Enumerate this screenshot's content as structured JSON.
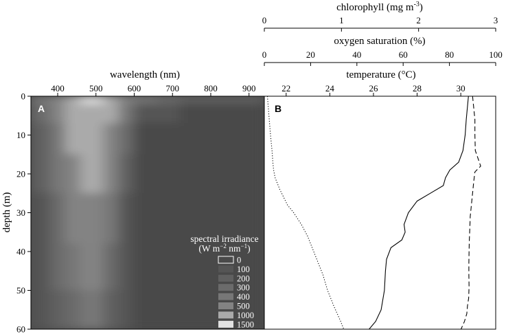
{
  "chart_data": [
    {
      "panel": "A",
      "type": "heatmap",
      "xlabel": "wavelength (nm)",
      "ylabel": "depth (m)",
      "xlim": [
        330,
        940
      ],
      "ylim": [
        0,
        60
      ],
      "xticks": [
        400,
        500,
        600,
        700,
        800,
        900
      ],
      "yticks": [
        0,
        10,
        20,
        30,
        40,
        50,
        60
      ],
      "legend": {
        "title_line1": "spectral irradiance",
        "title_line2_parts": [
          "(W m",
          "−2",
          " nm",
          "−1",
          ")"
        ],
        "position": "bottom-right",
        "levels": [
          {
            "label": "0",
            "color": "#4a4a4a"
          },
          {
            "label": "100",
            "color": "#555555"
          },
          {
            "label": "200",
            "color": "#606060"
          },
          {
            "label": "300",
            "color": "#6b6b6b"
          },
          {
            "label": "400",
            "color": "#777777"
          },
          {
            "label": "500",
            "color": "#838383"
          },
          {
            "label": "1000",
            "color": "#aaaaaa"
          },
          {
            "label": "1500",
            "color": "#e2e2e2"
          }
        ]
      },
      "band_columns": [
        {
          "wl": [
            330,
            380
          ],
          "levels": [
            4,
            3,
            2,
            2,
            1,
            1,
            1
          ]
        },
        {
          "wl": [
            380,
            420
          ],
          "levels": [
            5,
            5,
            4,
            4,
            3,
            3,
            2
          ]
        },
        {
          "wl": [
            420,
            460
          ],
          "levels": [
            6,
            6,
            6,
            5,
            5,
            4,
            3
          ]
        },
        {
          "wl": [
            460,
            520
          ],
          "levels": [
            7,
            6,
            6,
            6,
            5,
            5,
            4
          ]
        },
        {
          "wl": [
            520,
            560
          ],
          "levels": [
            6,
            6,
            5,
            5,
            4,
            3,
            2
          ]
        },
        {
          "wl": [
            560,
            600
          ],
          "levels": [
            5,
            4,
            3,
            2,
            1,
            1,
            1
          ]
        },
        {
          "wl": [
            600,
            660
          ],
          "levels": [
            4,
            1,
            0,
            0,
            0,
            0,
            0
          ]
        },
        {
          "wl": [
            660,
            720
          ],
          "levels": [
            3,
            1,
            0,
            0,
            0,
            0,
            0
          ]
        },
        {
          "wl": [
            720,
            940
          ],
          "levels": [
            2,
            0,
            0,
            0,
            0,
            0,
            0
          ]
        }
      ],
      "depth_rows": [
        [
          0,
          2
        ],
        [
          2,
          7
        ],
        [
          7,
          15
        ],
        [
          15,
          25
        ],
        [
          25,
          38
        ],
        [
          38,
          50
        ],
        [
          50,
          60
        ]
      ]
    },
    {
      "panel": "B",
      "type": "line",
      "ylabel": "depth (m)",
      "ylim": [
        0,
        60
      ],
      "axes": {
        "temperature": {
          "label": "temperature (°C)",
          "range": [
            21,
            31.6
          ],
          "ticks": [
            22,
            24,
            26,
            28,
            30
          ]
        },
        "oxygen": {
          "label": "oxygen saturation (%)",
          "range": [
            0,
            100
          ],
          "ticks": [
            0,
            20,
            40,
            60,
            80,
            100
          ]
        },
        "chlorophyll": {
          "label_prefix": "chlorophyll (mg m",
          "label_exp": "-3",
          "label_suffix": ")",
          "range": [
            0,
            3
          ],
          "ticks": [
            0,
            1,
            2,
            3
          ]
        }
      },
      "series": [
        {
          "axis": "chlorophyll",
          "style": "dotted",
          "x": [
            0.04,
            0.06,
            0.08,
            0.1,
            0.11,
            0.12,
            0.13,
            0.14,
            0.16,
            0.2,
            0.25,
            0.3,
            0.38,
            0.48,
            0.56,
            0.64,
            0.7,
            0.76,
            0.82,
            0.9,
            0.99,
            1.03
          ],
          "y": [
            0,
            5,
            10,
            14,
            17,
            19,
            20,
            21,
            22,
            24,
            26,
            28,
            30,
            33,
            36,
            40,
            43,
            46,
            50,
            54,
            58,
            60
          ]
        },
        {
          "axis": "temperature",
          "style": "solid",
          "x": [
            30.35,
            30.3,
            30.25,
            30.2,
            30.1,
            29.9,
            29.5,
            29.3,
            29.2,
            28.6,
            28.0,
            27.6,
            27.4,
            27.45,
            27.3,
            26.8,
            26.6,
            26.55,
            26.5,
            26.35,
            26.1,
            25.8
          ],
          "y": [
            0,
            3,
            6,
            10,
            14,
            17,
            19,
            21,
            23,
            25,
            27,
            30,
            33,
            35,
            37,
            39,
            42,
            45,
            50,
            55,
            58,
            60
          ]
        },
        {
          "axis": "oxygen",
          "style": "dashed",
          "x": [
            90,
            90.5,
            91,
            91,
            91.2,
            93.5,
            91,
            90.5,
            90,
            89.5,
            89,
            88.8,
            88.6,
            88.5,
            88.4,
            88.4,
            88.5,
            88.3,
            87.8,
            87.5,
            86.5,
            85
          ],
          "y": [
            0,
            3,
            6,
            10,
            14,
            18,
            19.5,
            22,
            25,
            28,
            31,
            34,
            37,
            40,
            43,
            46,
            49,
            52,
            54,
            56,
            58,
            60
          ]
        }
      ]
    }
  ],
  "labels": {
    "panel_a": "A",
    "panel_b": "B"
  }
}
